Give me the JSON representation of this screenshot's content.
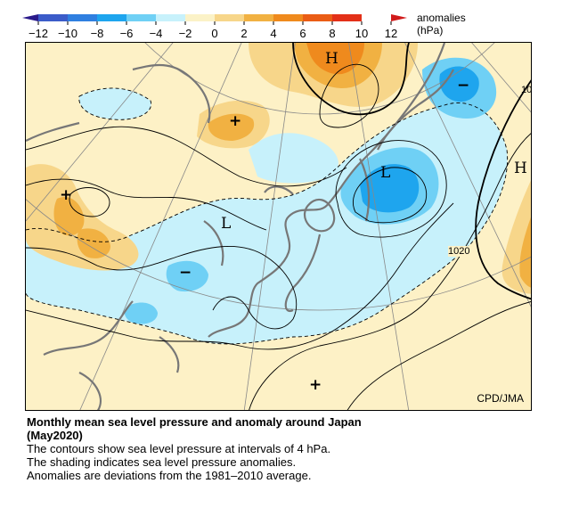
{
  "legend": {
    "ticks": [
      "−12",
      "−10",
      "−8",
      "−6",
      "−4",
      "−2",
      "0",
      "2",
      "4",
      "6",
      "8",
      "10",
      "12"
    ],
    "colors": [
      "#3b5cc9",
      "#2f7fe0",
      "#1ea5ee",
      "#6fd0f5",
      "#c7f1fb",
      "#fbf2c7",
      "#f7d68a",
      "#f1b142",
      "#ef8a1d",
      "#ea5d15",
      "#e33018"
    ],
    "units_line1": "anomalies",
    "units_line2": "(hPa)"
  },
  "map": {
    "symbols": {
      "high_north": "H",
      "high_east": "H",
      "low_japan_sea": "L",
      "low_china": "L",
      "minus_kamchatka": "−",
      "minus_china": "−",
      "plus_mongolia": "+",
      "plus_west": "+",
      "plus_pacific": "+"
    },
    "isobar_labels": {
      "top_right": "10",
      "right": "1020"
    },
    "credit": "CPD/JMA"
  },
  "caption": {
    "title_line1": "Monthly mean sea level pressure and anomaly around Japan",
    "title_line2": "(May2020)",
    "line1": "The contours show sea level pressure at intervals of 4 hPa.",
    "line2": "The shading indicates sea level pressure anomalies.",
    "line3": "Anomalies are deviations from the 1981–2010 average."
  }
}
